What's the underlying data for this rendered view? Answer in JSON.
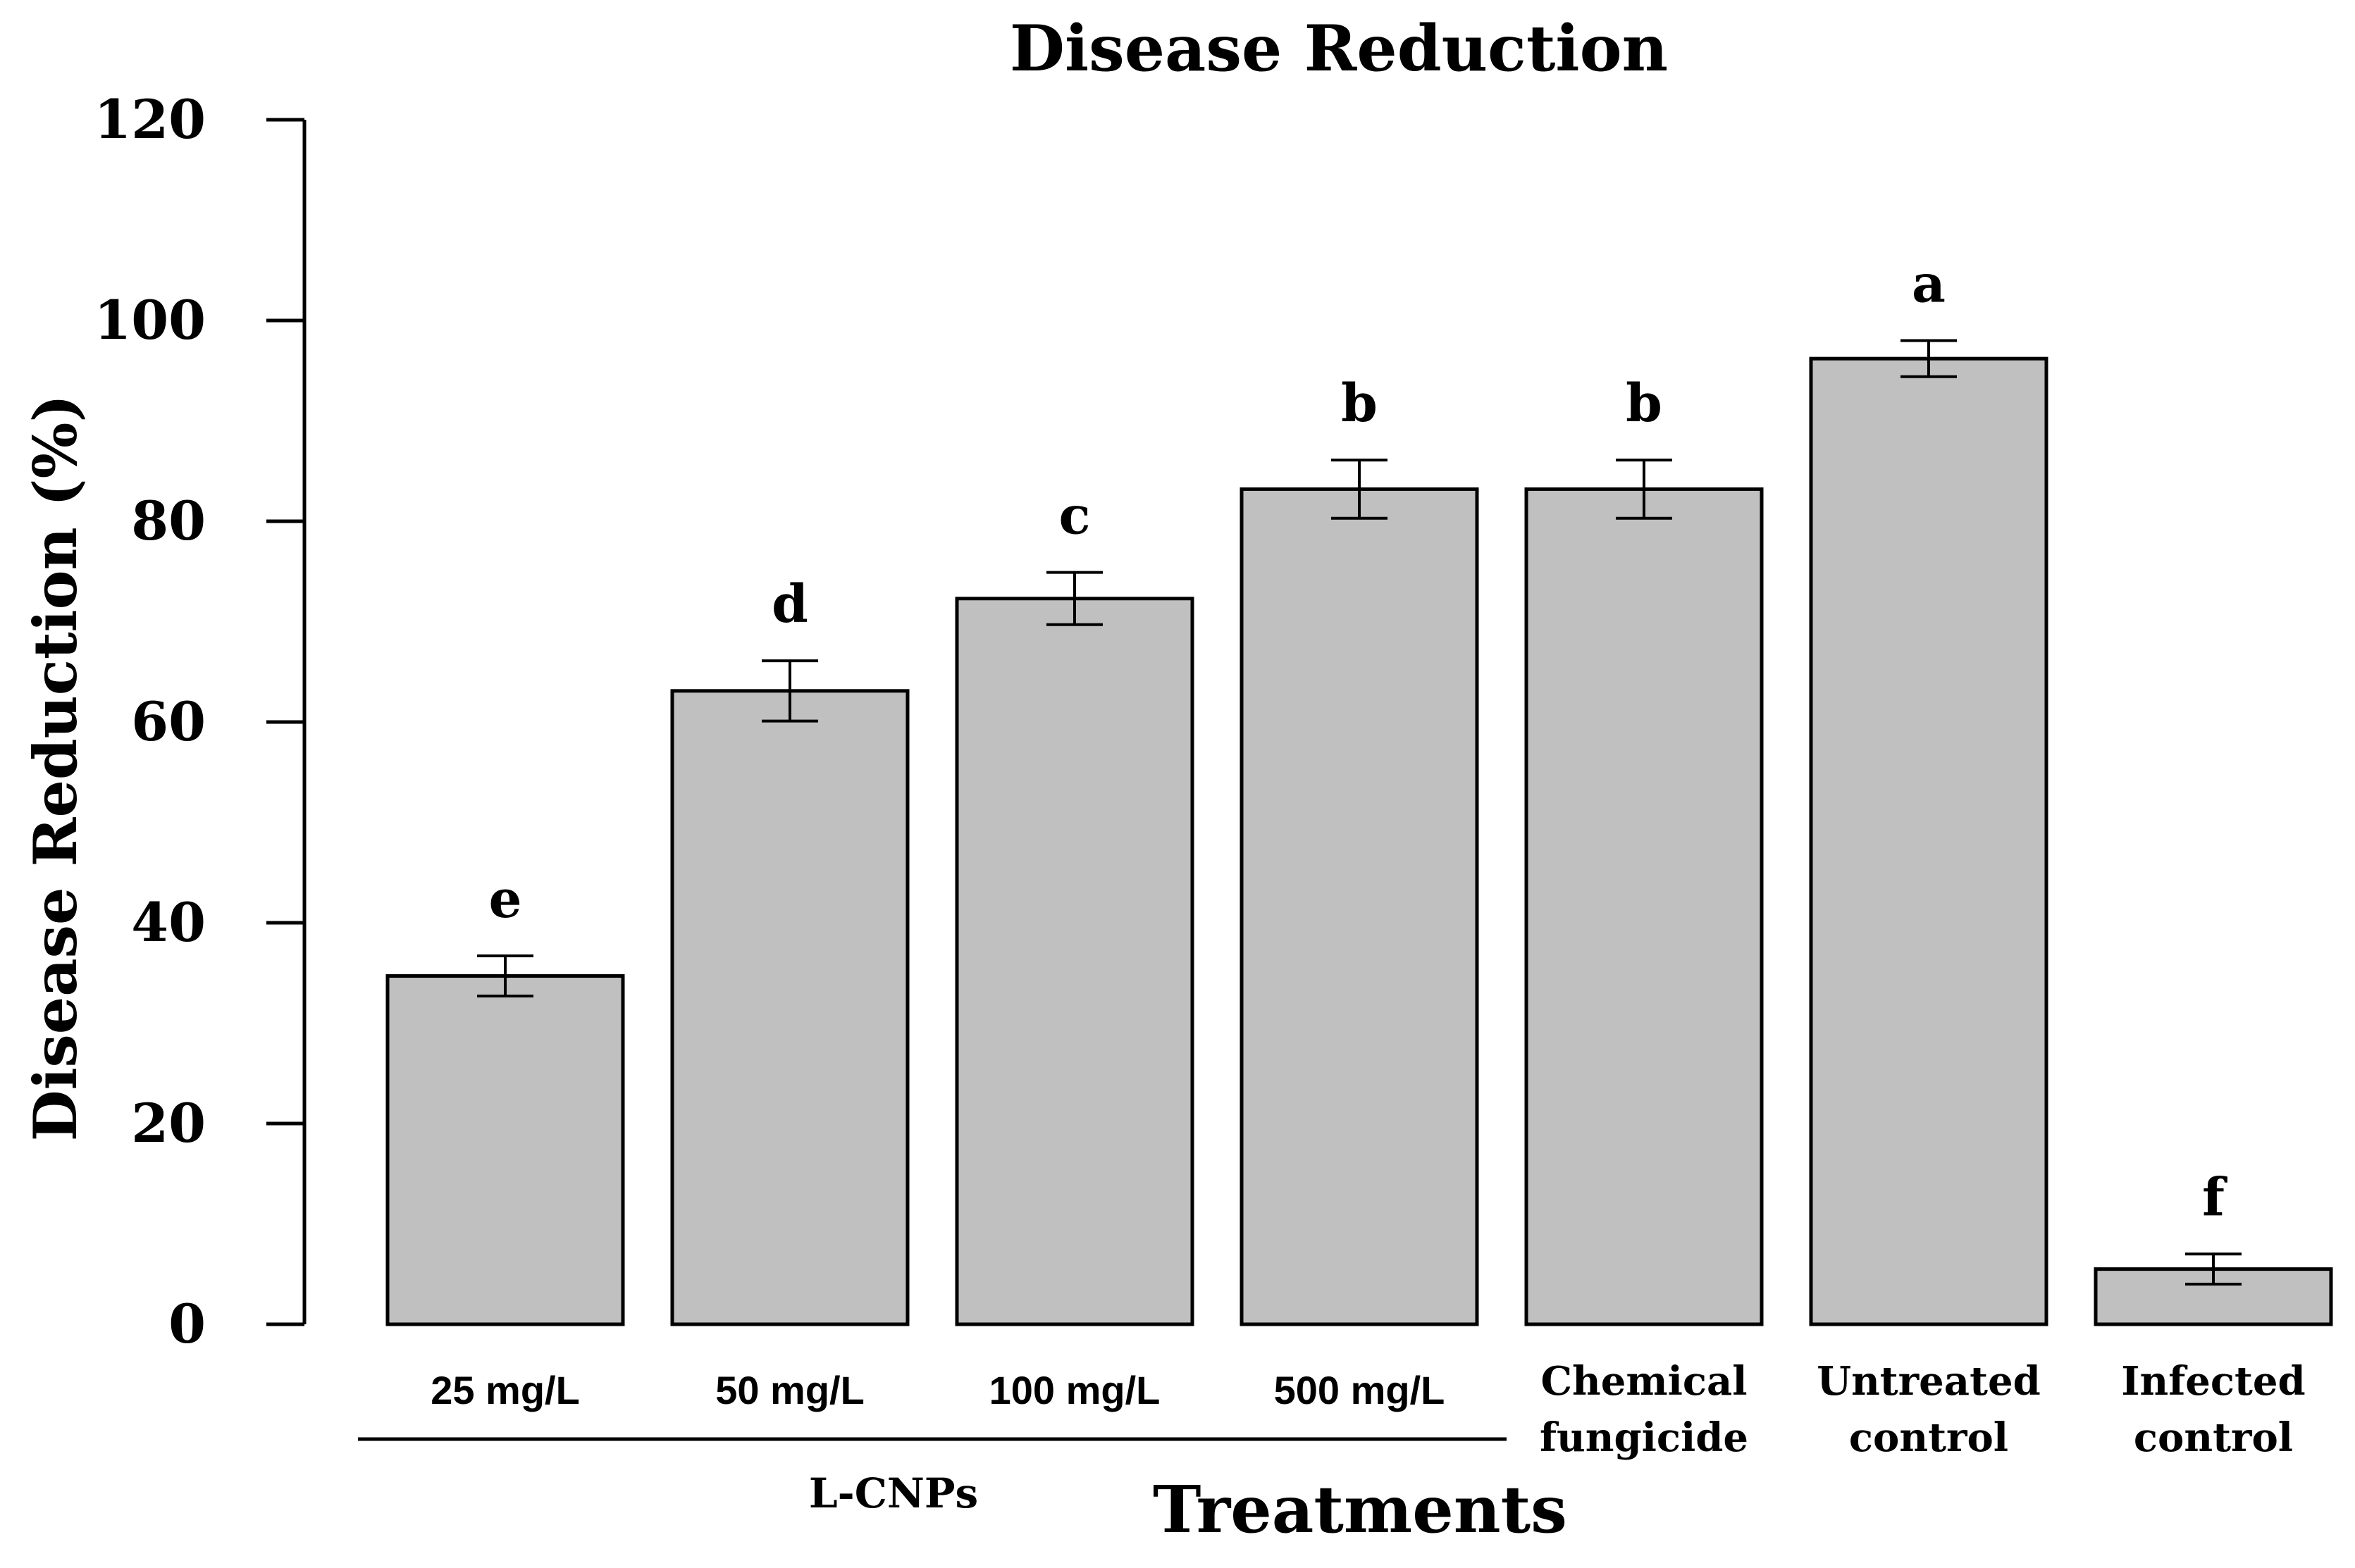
{
  "chart_data": {
    "type": "bar",
    "title": "Disease Reduction",
    "xlabel": "Treatments",
    "ylabel": "Disease Reduction (%)",
    "ylim": [
      0,
      120
    ],
    "yticks": [
      "0",
      "20",
      "40",
      "60",
      "80",
      "100",
      "120"
    ],
    "categories": [
      {
        "lines": [
          "25 mg/L"
        ],
        "style": "sans"
      },
      {
        "lines": [
          "50 mg/L"
        ],
        "style": "sans"
      },
      {
        "lines": [
          "100 mg/L"
        ],
        "style": "sans"
      },
      {
        "lines": [
          "500 mg/L"
        ],
        "style": "sans"
      },
      {
        "lines": [
          "Chemical",
          "fungicide"
        ],
        "style": "serif"
      },
      {
        "lines": [
          "Untreated",
          "control"
        ],
        "style": "serif"
      },
      {
        "lines": [
          "Infected",
          "control"
        ],
        "style": "serif"
      }
    ],
    "values": [
      34.7,
      63.1,
      72.3,
      83.2,
      83.2,
      96.2,
      5.5
    ],
    "errors": [
      2.0,
      3.0,
      2.6,
      2.9,
      2.9,
      1.8,
      1.5
    ],
    "significance_letters": [
      "e",
      "d",
      "c",
      "b",
      "b",
      "a",
      "f"
    ],
    "group_label": "L-CNPs",
    "group_span": [
      0,
      3
    ],
    "grid": false
  }
}
